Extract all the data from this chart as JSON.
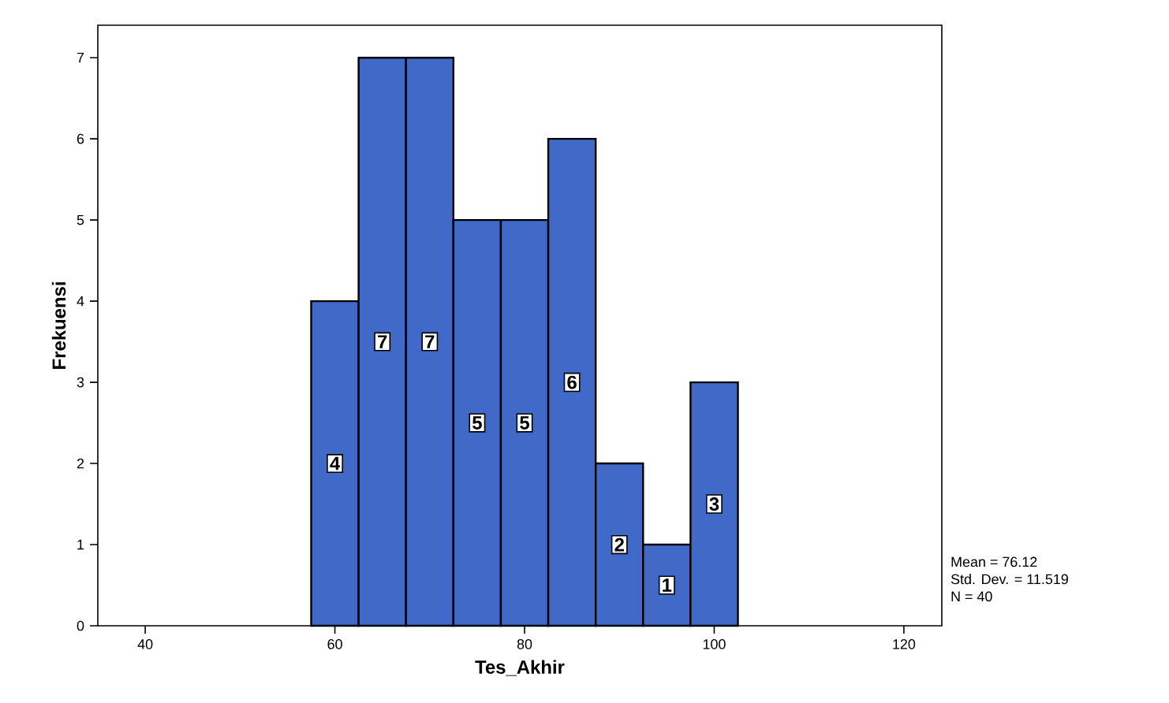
{
  "chart_data": {
    "type": "histogram",
    "xlabel": "Tes_Akhir",
    "ylabel": "Frekuensi",
    "bins": [
      57.5,
      62.5,
      67.5,
      72.5,
      77.5,
      82.5,
      87.5,
      92.5,
      97.5,
      102.5
    ],
    "values": [
      4,
      7,
      7,
      5,
      5,
      6,
      2,
      1,
      3
    ],
    "color": "#4169c8",
    "data_labels": true,
    "xlim": [
      35,
      124
    ],
    "ylim": [
      0,
      7.4
    ],
    "xticks": [
      40,
      60,
      80,
      100,
      120
    ],
    "yticks": [
      0,
      1,
      2,
      3,
      4,
      5,
      6,
      7
    ],
    "annotations": [
      "Mean = 76.12",
      "Std. Dev. = 11.519",
      "N = 40"
    ]
  }
}
